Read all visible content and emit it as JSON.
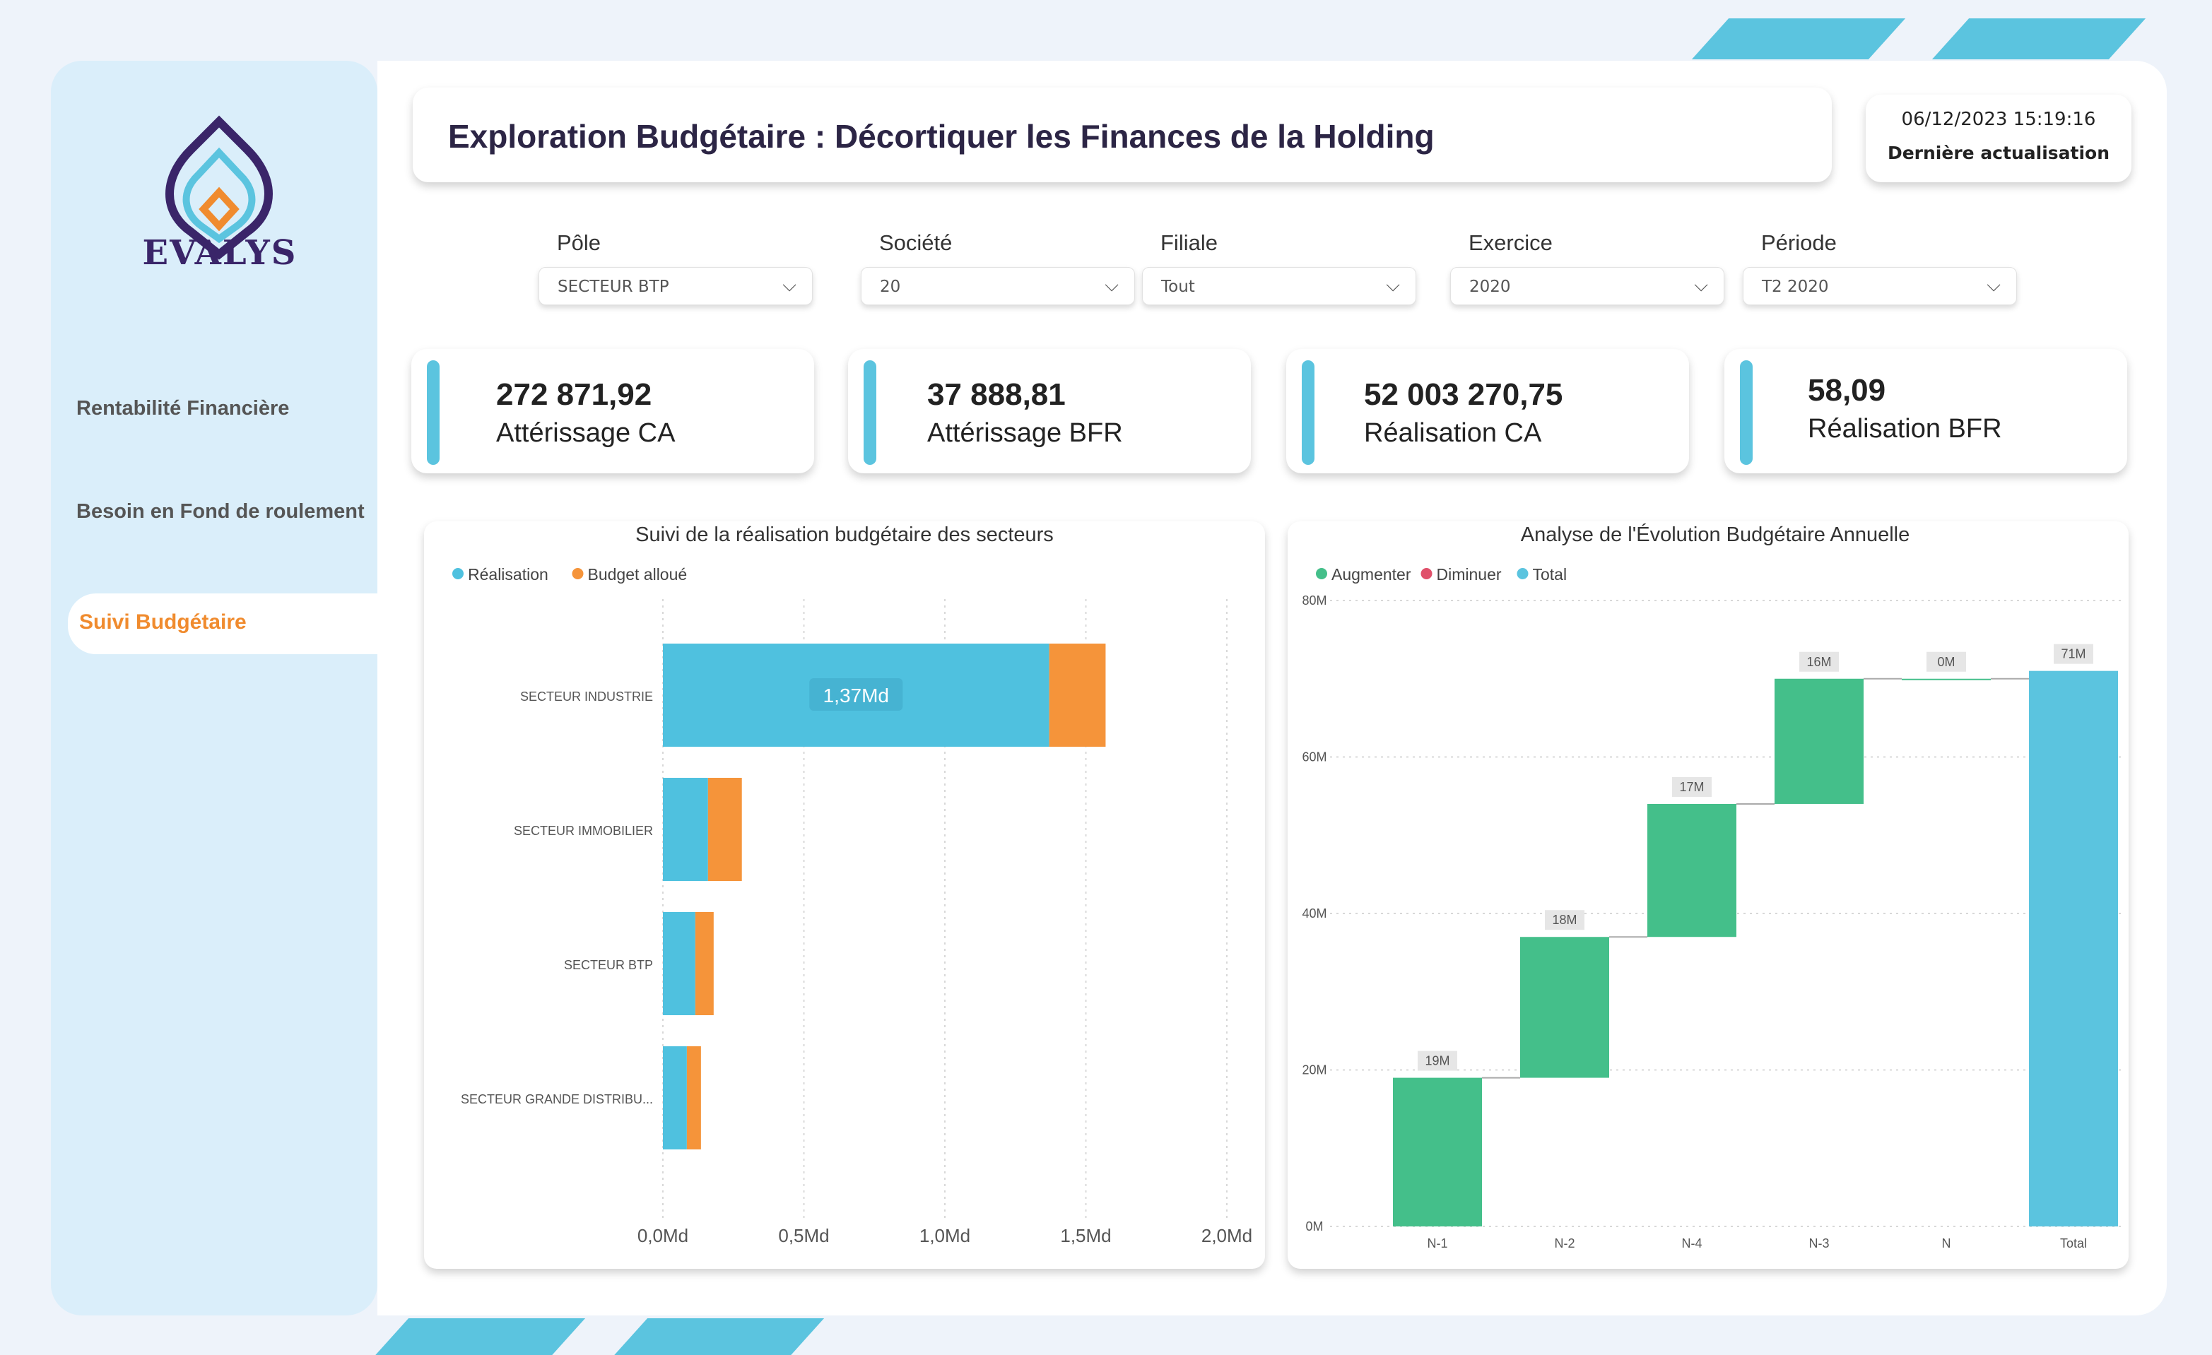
{
  "brand": {
    "name": "EVALYS"
  },
  "sidebar": {
    "items": [
      {
        "label": "Rentabilité Financière",
        "active": false
      },
      {
        "label": "Besoin en Fond de roulement",
        "active": false
      },
      {
        "label": "Suivi Budgétaire",
        "active": true
      }
    ]
  },
  "header": {
    "title": "Exploration Budgétaire : Décortiquer les Finances de la Holding",
    "refresh_time": "06/12/2023 15:19:16",
    "refresh_label": "Dernière actualisation"
  },
  "filters": [
    {
      "label": "Pôle",
      "value": "SECTEUR BTP"
    },
    {
      "label": "Société",
      "value": "20"
    },
    {
      "label": "Filiale",
      "value": "Tout"
    },
    {
      "label": "Exercice",
      "value": "2020"
    },
    {
      "label": "Période",
      "value": "T2 2020"
    }
  ],
  "kpis": [
    {
      "value": "272 871,92",
      "label": "Attérissage CA"
    },
    {
      "value": "37 888,81",
      "label": "Attérissage BFR"
    },
    {
      "value": "52 003 270,75",
      "label": "Réalisation CA"
    },
    {
      "value": "58,09",
      "label": "Réalisation BFR"
    }
  ],
  "colors": {
    "accent": "#5bc4df",
    "orange": "#f5943a",
    "green": "#44bf8a",
    "red": "#e0506a",
    "nav_active": "#f08b2e"
  },
  "chart_data": [
    {
      "type": "bar",
      "orientation": "horizontal",
      "stacked": true,
      "title": "Suivi de la réalisation budgétaire des secteurs",
      "categories": [
        "SECTEUR INDUSTRIE",
        "SECTEUR IMMOBILIER",
        "SECTEUR BTP",
        "SECTEUR GRANDE DISTRIBU..."
      ],
      "series": [
        {
          "name": "Réalisation",
          "color": "#4fc1df",
          "values": [
            1.37,
            0.16,
            0.115,
            0.085
          ]
        },
        {
          "name": "Budget alloué",
          "color": "#f5943a",
          "values": [
            0.2,
            0.12,
            0.065,
            0.05
          ]
        }
      ],
      "data_labels": [
        "1,37Md",
        "",
        "",
        ""
      ],
      "xlim": [
        0,
        2.0
      ],
      "x_ticks": [
        "0,0Md",
        "0,5Md",
        "1,0Md",
        "1,5Md",
        "2,0Md"
      ],
      "legend": "top-left",
      "grid": true
    },
    {
      "type": "waterfall",
      "title": "Analyse de l'Évolution Budgétaire Annuelle",
      "legend_items": [
        {
          "name": "Augmenter",
          "color": "#44bf8a"
        },
        {
          "name": "Diminuer",
          "color": "#e0506a"
        },
        {
          "name": "Total",
          "color": "#5bc4df"
        }
      ],
      "categories": [
        "N-1",
        "N-2",
        "N-4",
        "N-3",
        "N",
        "Total"
      ],
      "values": [
        19,
        18,
        17,
        16,
        0,
        71
      ],
      "labels": [
        "19M",
        "18M",
        "17M",
        "16M",
        "0M",
        "71M"
      ],
      "kinds": [
        "increase",
        "increase",
        "increase",
        "increase",
        "increase",
        "total"
      ],
      "ylim": [
        0,
        80
      ],
      "y_ticks": [
        "0M",
        "20M",
        "40M",
        "60M",
        "80M"
      ],
      "legend": "top-left",
      "grid": true
    }
  ]
}
